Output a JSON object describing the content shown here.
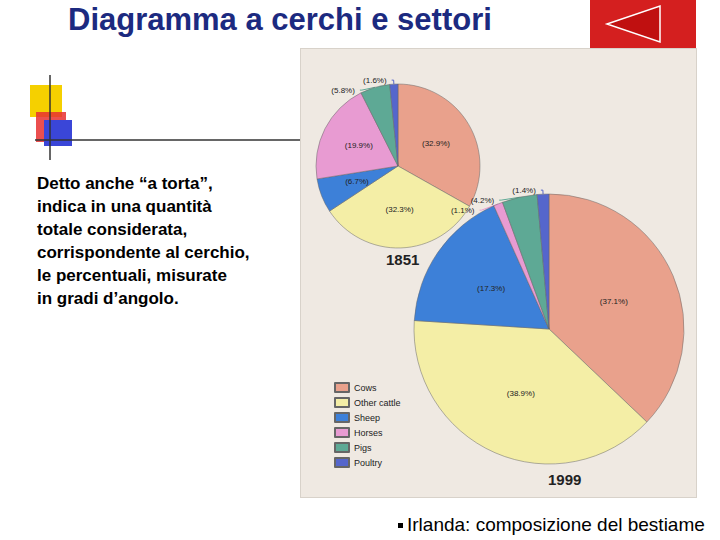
{
  "slide": {
    "title": "Diagramma a cerchi e settori",
    "body": [
      "Detto anche “a torta”,",
      "indica in una quantità",
      "totale considerata,",
      "corrispondente al cerchio,",
      "le percentuali, misurate",
      "in gradi d’angolo."
    ],
    "caption": "Irlanda: composizione del bestiame"
  },
  "chart_data": [
    {
      "type": "pie",
      "title": "1851",
      "categories": [
        "Cows",
        "Other cattle",
        "Sheep",
        "Horses",
        "Pigs",
        "Poultry"
      ],
      "values": [
        32.9,
        32.3,
        6.7,
        19.9,
        5.8,
        1.6
      ],
      "value_labels": [
        "(32.9%)",
        "(32.3%)",
        "(6.7%)",
        "(19.9%)",
        "(5.8%)",
        "(1.6%)"
      ],
      "colors": [
        "#e9a18c",
        "#f4eea6",
        "#3d80d8",
        "#e89bd2",
        "#5ea995",
        "#5566cc"
      ],
      "data_labels": true
    },
    {
      "type": "pie",
      "title": "1999",
      "categories": [
        "Cows",
        "Other cattle",
        "Sheep",
        "Horses",
        "Pigs",
        "Poultry"
      ],
      "values": [
        37.1,
        38.9,
        17.3,
        1.1,
        4.2,
        1.4
      ],
      "value_labels": [
        "(37.1%)",
        "(38.9%)",
        "(17.3%)",
        "(1.1%)",
        "(4.2%)",
        "(1.4%)"
      ],
      "colors": [
        "#e9a18c",
        "#f4eea6",
        "#3d80d8",
        "#e89bd2",
        "#5ea995",
        "#5566cc"
      ],
      "data_labels": true,
      "legend": "left"
    }
  ]
}
